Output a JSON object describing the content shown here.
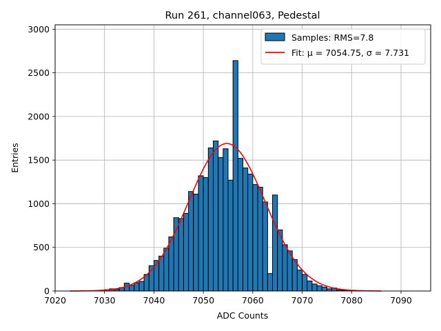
{
  "chart_data": {
    "type": "bar",
    "title": "Run 261, channel063, Pedestal",
    "xlabel": "ADC Counts",
    "ylabel": "Entries",
    "xlim": [
      7020,
      7096
    ],
    "ylim": [
      0,
      3050
    ],
    "xticks": [
      7020,
      7030,
      7040,
      7050,
      7060,
      7070,
      7080,
      7090
    ],
    "yticks": [
      0,
      500,
      1000,
      1500,
      2000,
      2500,
      3000
    ],
    "grid": true,
    "legend_position": "top-right",
    "colors": {
      "bar": "#1f77b4",
      "fit": "#ff0000",
      "grid": "#b0b0b0"
    },
    "series": [
      {
        "name": "Samples: RMS=7.8",
        "kind": "histogram",
        "bin_width": 1,
        "bins": [
          {
            "x": 7030,
            "y": 15
          },
          {
            "x": 7031,
            "y": 25
          },
          {
            "x": 7032,
            "y": 20
          },
          {
            "x": 7033,
            "y": 40
          },
          {
            "x": 7034,
            "y": 90
          },
          {
            "x": 7035,
            "y": 65
          },
          {
            "x": 7036,
            "y": 95
          },
          {
            "x": 7037,
            "y": 110
          },
          {
            "x": 7038,
            "y": 190
          },
          {
            "x": 7039,
            "y": 290
          },
          {
            "x": 7040,
            "y": 350
          },
          {
            "x": 7041,
            "y": 400
          },
          {
            "x": 7042,
            "y": 490
          },
          {
            "x": 7043,
            "y": 620
          },
          {
            "x": 7044,
            "y": 840
          },
          {
            "x": 7045,
            "y": 830
          },
          {
            "x": 7046,
            "y": 890
          },
          {
            "x": 7047,
            "y": 1140
          },
          {
            "x": 7048,
            "y": 1110
          },
          {
            "x": 7049,
            "y": 1320
          },
          {
            "x": 7050,
            "y": 1300
          },
          {
            "x": 7051,
            "y": 1640
          },
          {
            "x": 7052,
            "y": 1720
          },
          {
            "x": 7053,
            "y": 1530
          },
          {
            "x": 7054,
            "y": 1630
          },
          {
            "x": 7055,
            "y": 1270
          },
          {
            "x": 7056,
            "y": 2640
          },
          {
            "x": 7057,
            "y": 1520
          },
          {
            "x": 7058,
            "y": 1410
          },
          {
            "x": 7059,
            "y": 1340
          },
          {
            "x": 7060,
            "y": 1220
          },
          {
            "x": 7061,
            "y": 1190
          },
          {
            "x": 7062,
            "y": 1020
          },
          {
            "x": 7063,
            "y": 200
          },
          {
            "x": 7064,
            "y": 1100
          },
          {
            "x": 7065,
            "y": 700
          },
          {
            "x": 7066,
            "y": 530
          },
          {
            "x": 7067,
            "y": 460
          },
          {
            "x": 7068,
            "y": 360
          },
          {
            "x": 7069,
            "y": 240
          },
          {
            "x": 7070,
            "y": 190
          },
          {
            "x": 7071,
            "y": 115
          },
          {
            "x": 7072,
            "y": 80
          },
          {
            "x": 7073,
            "y": 60
          },
          {
            "x": 7074,
            "y": 45
          },
          {
            "x": 7075,
            "y": 25
          },
          {
            "x": 7076,
            "y": 35
          },
          {
            "x": 7077,
            "y": 12
          },
          {
            "x": 7078,
            "y": 8
          },
          {
            "x": 7079,
            "y": 5
          }
        ]
      },
      {
        "name": "Fit: μ = 7054.75, σ = 7.731",
        "kind": "gaussian_fit",
        "mu": 7054.75,
        "sigma": 7.731,
        "amplitude": 1690,
        "x_range": [
          7023,
          7086
        ]
      }
    ]
  }
}
